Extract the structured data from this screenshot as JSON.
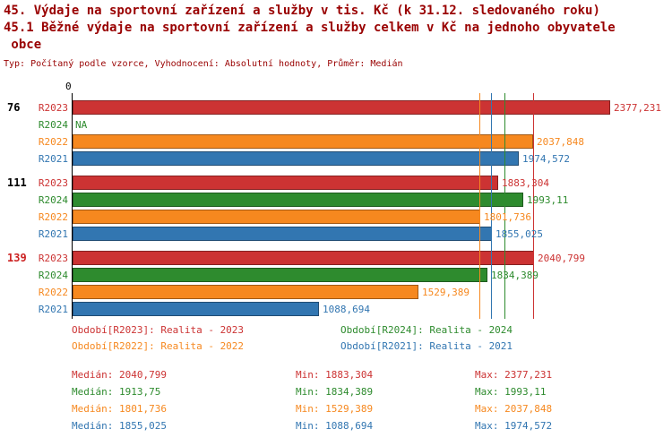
{
  "header": {
    "title_line1": "45. Výdaje na sportovní zařízení a služby v tis. Kč (k 31.12. sledovaného roku)",
    "title_line2": "45.1 Běžné výdaje na sportovní zařízení a služby celkem v Kč na jednoho obyvatele",
    "title_line3": " obce",
    "meta": "Typ: Počítaný podle vzorce, Vyhodnocení: Absolutní hodnoty, Průměr: Medián"
  },
  "colors": {
    "title": "#990000",
    "axis": "#000000",
    "group_label": "#000000",
    "group_label_highlight": "#cc2222",
    "R2023": "#cc3333",
    "R2024": "#2e8b2e",
    "R2022": "#f6881f",
    "R2021": "#3276b1"
  },
  "chart_data": {
    "type": "bar",
    "orientation": "horizontal",
    "x_origin_label": "0",
    "xlabel": "",
    "ylabel": "",
    "xmax": 2377.231,
    "series_colors": {
      "R2023": "#cc3333",
      "R2024": "#2e8b2e",
      "R2022": "#f6881f",
      "R2021": "#3276b1"
    },
    "groups": [
      {
        "label": "76",
        "highlight": false,
        "bars": [
          {
            "series": "R2023",
            "value": 2377.231,
            "value_label": "2377,231"
          },
          {
            "series": "R2024",
            "value": null,
            "value_label": "NA"
          },
          {
            "series": "R2022",
            "value": 2037.848,
            "value_label": "2037,848"
          },
          {
            "series": "R2021",
            "value": 1974.572,
            "value_label": "1974,572"
          }
        ]
      },
      {
        "label": "111",
        "highlight": false,
        "bars": [
          {
            "series": "R2023",
            "value": 1883.304,
            "value_label": "1883,304"
          },
          {
            "series": "R2024",
            "value": 1993.11,
            "value_label": "1993,11"
          },
          {
            "series": "R2022",
            "value": 1801.736,
            "value_label": "1801,736"
          },
          {
            "series": "R2021",
            "value": 1855.025,
            "value_label": "1855,025"
          }
        ]
      },
      {
        "label": "139",
        "highlight": true,
        "bars": [
          {
            "series": "R2023",
            "value": 2040.799,
            "value_label": "2040,799"
          },
          {
            "series": "R2024",
            "value": 1834.389,
            "value_label": "1834,389"
          },
          {
            "series": "R2022",
            "value": 1529.389,
            "value_label": "1529,389"
          },
          {
            "series": "R2021",
            "value": 1088.694,
            "value_label": "1088,694"
          }
        ]
      }
    ],
    "median_lines": [
      {
        "series": "R2023",
        "value": 2040.799
      },
      {
        "series": "R2024",
        "value": 1913.75
      },
      {
        "series": "R2022",
        "value": 1801.736
      },
      {
        "series": "R2021",
        "value": 1855.025
      }
    ],
    "legend": [
      {
        "series": "R2023",
        "label": "Období[R2023]: Realita - 2023"
      },
      {
        "series": "R2024",
        "label": "Období[R2024]: Realita - 2024"
      },
      {
        "series": "R2022",
        "label": "Období[R2022]: Realita - 2022"
      },
      {
        "series": "R2021",
        "label": "Období[R2021]: Realita - 2021"
      }
    ],
    "stats": [
      {
        "series": "R2023",
        "median_label": "Medián: 2040,799",
        "min_label": "Min: 1883,304",
        "max_label": "Max: 2377,231"
      },
      {
        "series": "R2024",
        "median_label": "Medián: 1913,75",
        "min_label": "Min: 1834,389",
        "max_label": "Max: 1993,11"
      },
      {
        "series": "R2022",
        "median_label": "Medián: 1801,736",
        "min_label": "Min: 1529,389",
        "max_label": "Max: 2037,848"
      },
      {
        "series": "R2021",
        "median_label": "Medián: 1855,025",
        "min_label": "Min: 1088,694",
        "max_label": "Max: 1974,572"
      }
    ]
  }
}
